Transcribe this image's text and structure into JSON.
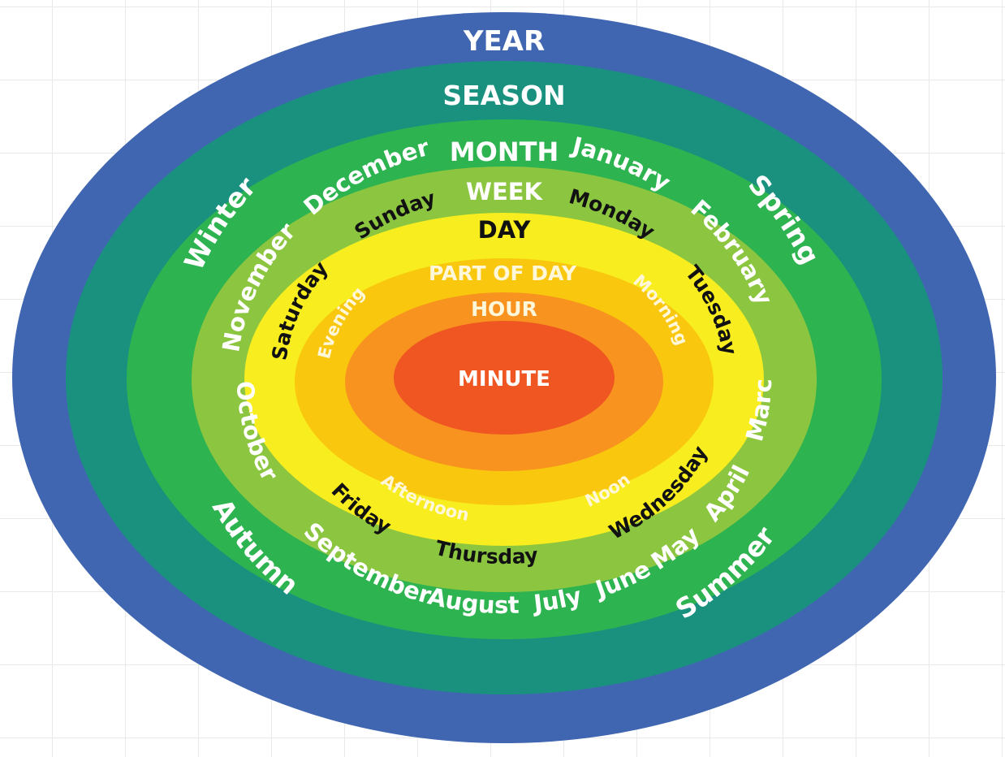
{
  "rings": {
    "year": {
      "title": "YEAR",
      "color": "#4066b1"
    },
    "season": {
      "title": "SEASON",
      "color": "#1a917f"
    },
    "month": {
      "title": "MONTH",
      "color": "#2db34f"
    },
    "week": {
      "title": "WEEK",
      "color": "#8cc640"
    },
    "day": {
      "title": "DAY",
      "color": "#f8ed1f"
    },
    "part": {
      "title": "PART OF DAY",
      "color": "#f9c80e"
    },
    "hour": {
      "title": "HOUR",
      "color": "#f7931e"
    },
    "minute": {
      "title": "MINUTE",
      "color": "#ef5622"
    }
  },
  "seasons": [
    "Winter",
    "Spring",
    "Summer",
    "Autumn"
  ],
  "months": [
    "December",
    "January",
    "February",
    "March",
    "April",
    "May",
    "June",
    "July",
    "August",
    "September",
    "October",
    "November"
  ],
  "days": [
    "Sunday",
    "Monday",
    "Tuesday",
    "Wednesday",
    "Thursday",
    "Friday",
    "Saturday"
  ],
  "parts_of_day": [
    "Morning",
    "Noon",
    "Afternoon",
    "Evening"
  ]
}
